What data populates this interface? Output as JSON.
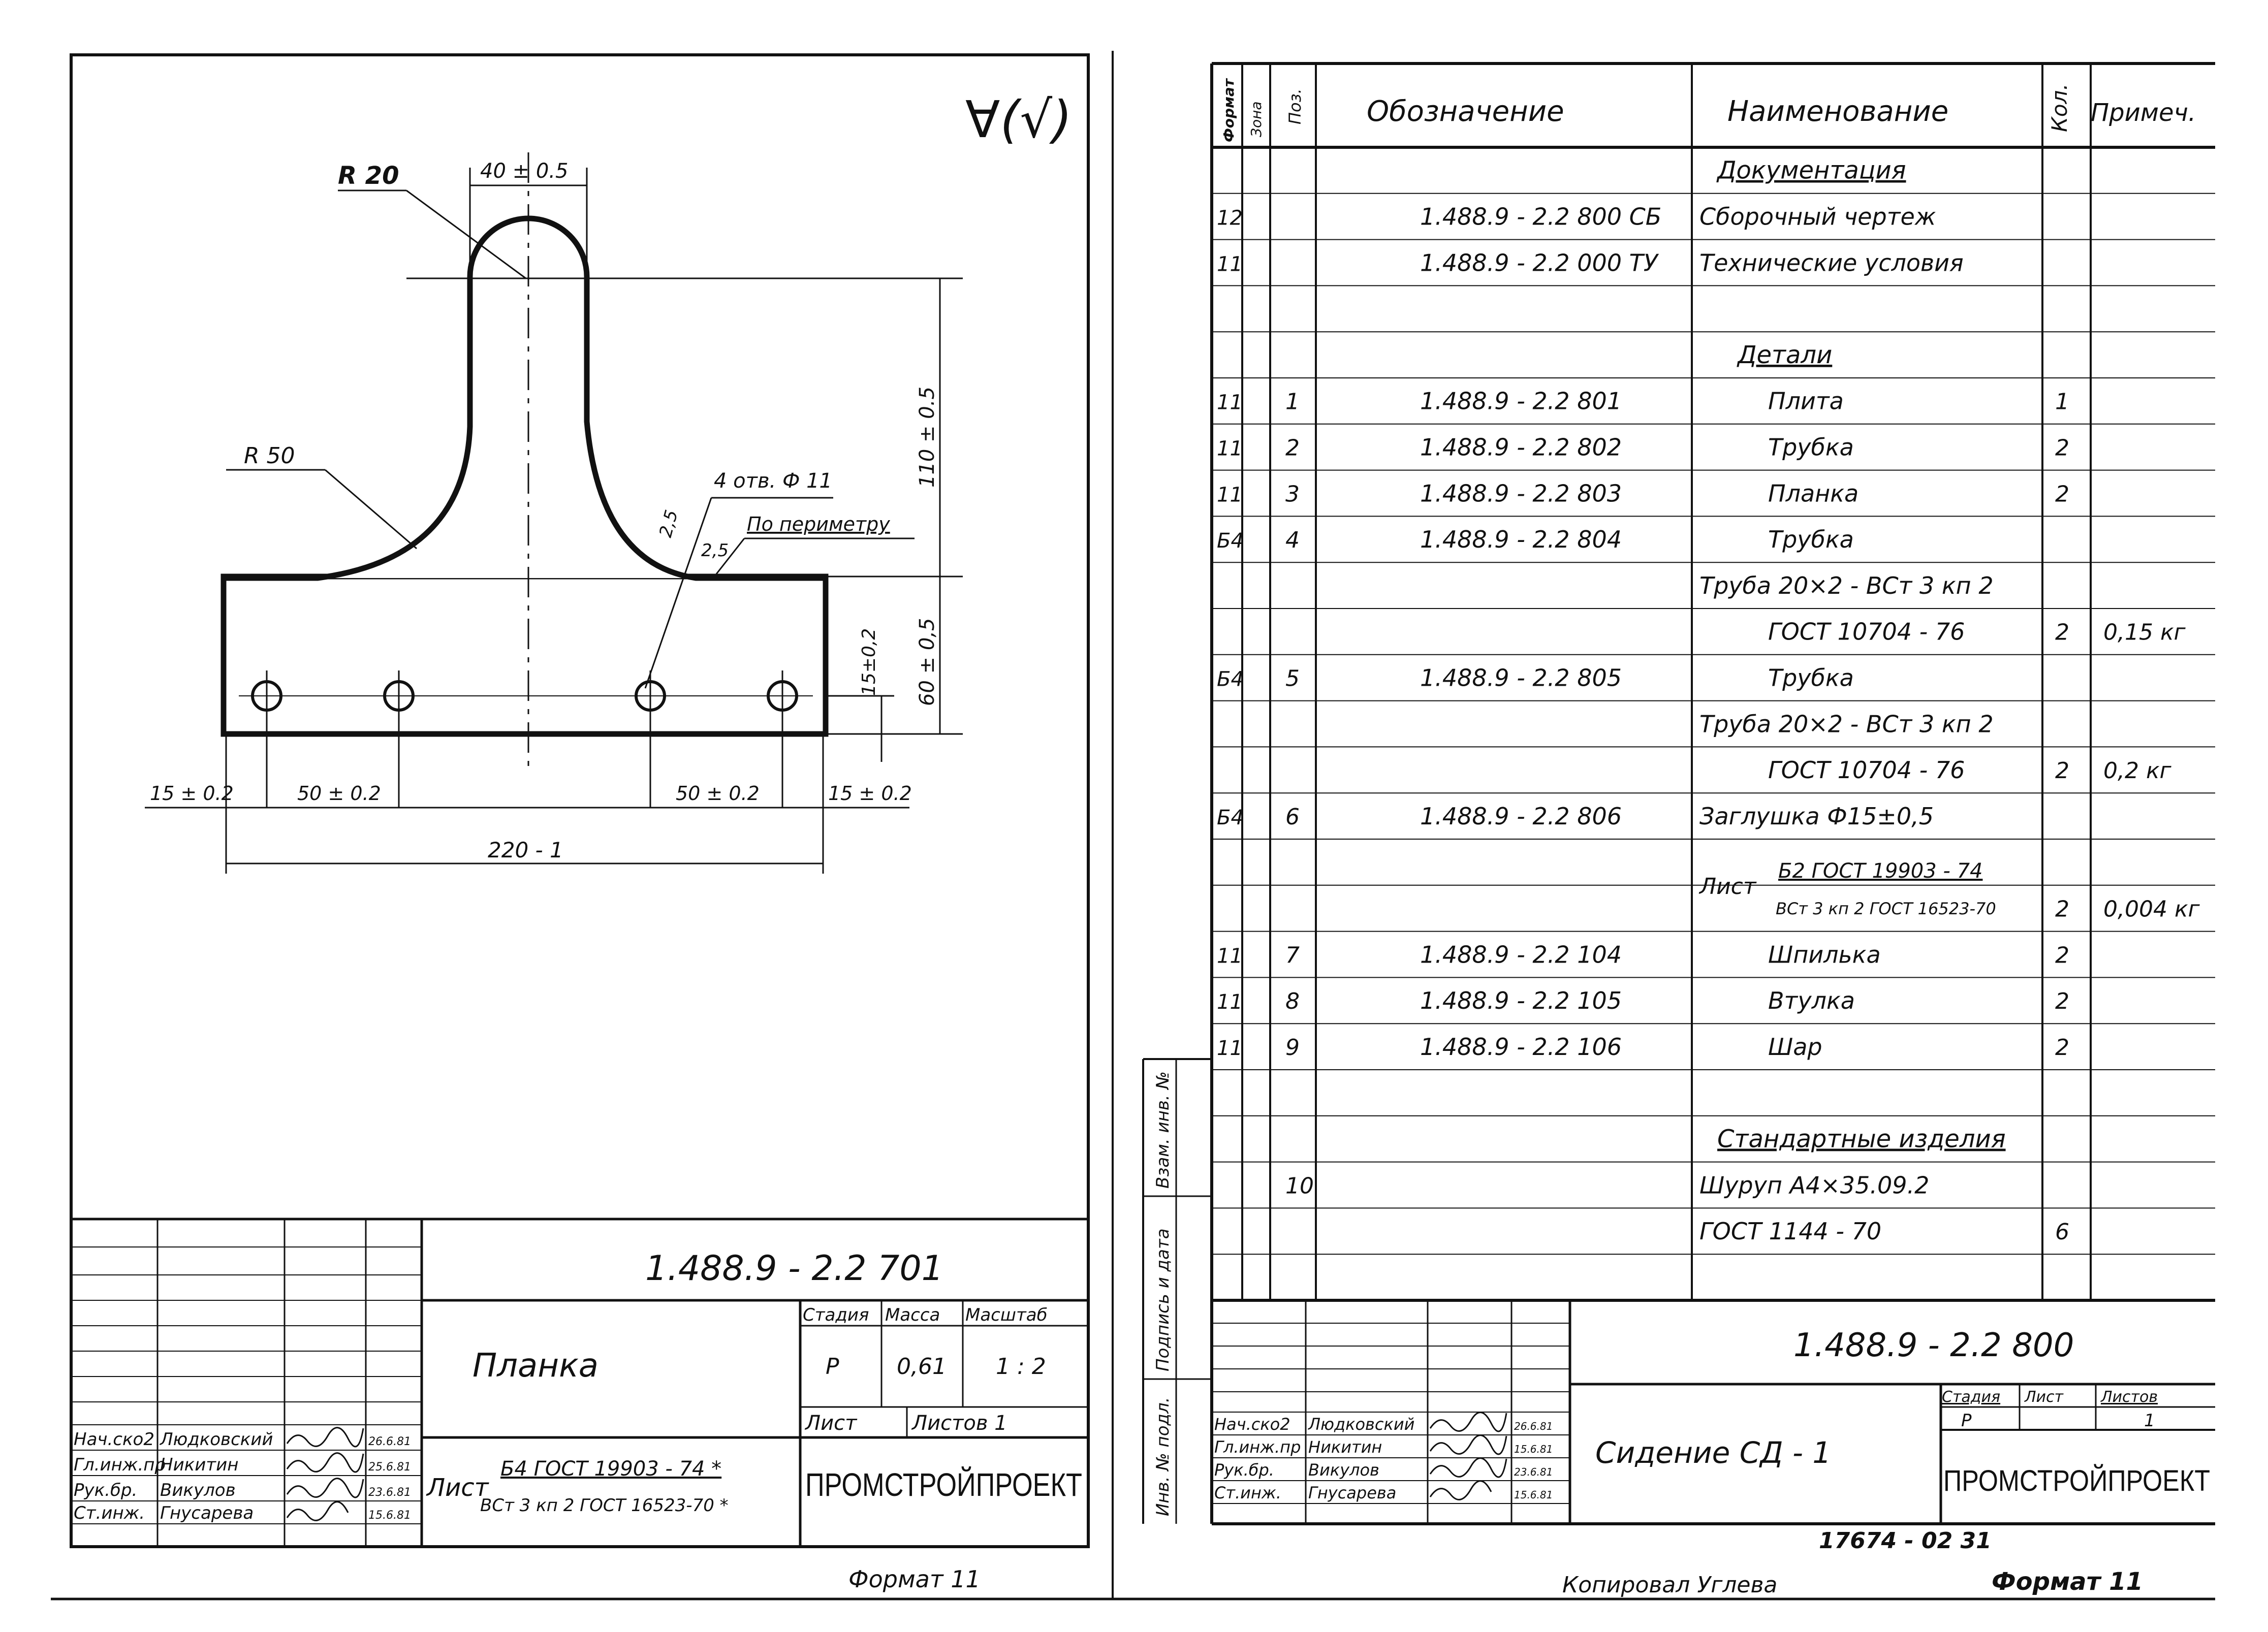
{
  "colors": {
    "ink": "#111111",
    "paper": "#ffffff"
  },
  "left_sheet": {
    "roughness_mark": "∀(√)",
    "dims": {
      "r20": "R 20",
      "top_width": "40 ± 0.5",
      "r50": "R 50",
      "height_110": "110 ± 0.5",
      "holes": "4 отв. Ф 11",
      "weld_a": "2,5",
      "weld_b": "2,5",
      "perimeter": "По периметру",
      "height_60": "60 ± 0,5",
      "hole_offset_15": "15±0,2",
      "left_15": "15 ± 0.2",
      "left_50": "50 ± 0.2",
      "right_50": "50 ± 0.2",
      "right_15": "15 ± 0.2",
      "total_width": "220 - 1"
    },
    "title_block": {
      "designation": "1.488.9 - 2.2 701",
      "part_name": "Планка",
      "material_label": "Лист",
      "material_top": "Б4 ГОСТ 19903 - 74 *",
      "material_bottom": "ВСт 3 кп 2 ГОСТ 16523-70 *",
      "stage_header": "Стадия",
      "mass_header": "Масса",
      "scale_header": "Масштаб",
      "stage": "Р",
      "mass": "0,61",
      "scale": "1 : 2",
      "sheet_label": "Лист",
      "sheets_label": "Листов 1",
      "organization": "ПРОМСТРОЙПРОЕКТ",
      "signatures": [
        {
          "role": "Нач.ско2",
          "name": "Людковский",
          "date": "26.6.81"
        },
        {
          "role": "Гл.инж.пр",
          "name": "Никитин",
          "date": "25.6.81"
        },
        {
          "role": "Рук.бр.",
          "name": "Викулов",
          "date": "23.6.81"
        },
        {
          "role": "Ст.инж.",
          "name": "Гнусарева",
          "date": "15.6.81"
        }
      ]
    },
    "format": "Формат 11"
  },
  "right_sheet": {
    "table_headers": {
      "format": "Формат",
      "zone": "Зона",
      "pos": "Поз.",
      "designation": "Обозначение",
      "name": "Наименование",
      "qty": "Кол.",
      "note": "Примеч."
    },
    "rows": [
      {
        "format": "",
        "pos": "",
        "designation": "",
        "name": "Документация",
        "qty": "",
        "note": "",
        "style": "section"
      },
      {
        "format": "12",
        "pos": "",
        "designation": "1.488.9 - 2.2 800 СБ",
        "name": "Сборочный чертеж",
        "qty": "",
        "note": ""
      },
      {
        "format": "11",
        "pos": "",
        "designation": "1.488.9 - 2.2 000 ТУ",
        "name": "Технические условия",
        "qty": "",
        "note": ""
      },
      {
        "format": "",
        "pos": "",
        "designation": "",
        "name": "",
        "qty": "",
        "note": ""
      },
      {
        "format": "",
        "pos": "",
        "designation": "",
        "name": "Детали",
        "qty": "",
        "note": "",
        "style": "section"
      },
      {
        "format": "11",
        "pos": "1",
        "designation": "1.488.9 - 2.2 801",
        "name": "Плита",
        "qty": "1",
        "note": "",
        "style": "indent"
      },
      {
        "format": "11",
        "pos": "2",
        "designation": "1.488.9 - 2.2 802",
        "name": "Трубка",
        "qty": "2",
        "note": "",
        "style": "indent"
      },
      {
        "format": "11",
        "pos": "3",
        "designation": "1.488.9 - 2.2 803",
        "name": "Планка",
        "qty": "2",
        "note": "",
        "style": "indent"
      },
      {
        "format": "Б4",
        "pos": "4",
        "designation": "1.488.9 - 2.2 804",
        "name": "Трубка",
        "qty": "",
        "note": "",
        "style": "indent"
      },
      {
        "format": "",
        "pos": "",
        "designation": "",
        "name": "Труба 20×2 - ВСт 3 кп 2",
        "qty": "",
        "note": ""
      },
      {
        "format": "",
        "pos": "",
        "designation": "",
        "name": "ГОСТ 10704 - 76",
        "qty": "2",
        "note": "0,15 кг",
        "style": "indent"
      },
      {
        "format": "Б4",
        "pos": "5",
        "designation": "1.488.9 - 2.2 805",
        "name": "Трубка",
        "qty": "",
        "note": "",
        "style": "indent"
      },
      {
        "format": "",
        "pos": "",
        "designation": "",
        "name": "Труба 20×2 - ВСт 3 кп 2",
        "qty": "",
        "note": ""
      },
      {
        "format": "",
        "pos": "",
        "designation": "",
        "name": "ГОСТ 10704 - 76",
        "qty": "2",
        "note": "0,2 кг",
        "style": "indent"
      },
      {
        "format": "Б4",
        "pos": "6",
        "designation": "1.488.9 - 2.2 806",
        "name": "Заглушка Ф15±0,5",
        "qty": "",
        "note": ""
      },
      {
        "format": "",
        "pos": "",
        "designation": "",
        "name": "",
        "qty": "",
        "note": "",
        "style": "fraction_top"
      },
      {
        "format": "",
        "pos": "",
        "designation": "",
        "name": "",
        "qty": "2",
        "note": "0,004 кг",
        "style": "fraction_bottom"
      },
      {
        "format": "11",
        "pos": "7",
        "designation": "1.488.9 - 2.2 104",
        "name": "Шпилька",
        "qty": "2",
        "note": "",
        "style": "indent"
      },
      {
        "format": "11",
        "pos": "8",
        "designation": "1.488.9 - 2.2 105",
        "name": "Втулка",
        "qty": "2",
        "note": "",
        "style": "indent"
      },
      {
        "format": "11",
        "pos": "9",
        "designation": "1.488.9 - 2.2 106",
        "name": "Шар",
        "qty": "2",
        "note": "",
        "style": "indent"
      },
      {
        "format": "",
        "pos": "",
        "designation": "",
        "name": "",
        "qty": "",
        "note": ""
      },
      {
        "format": "",
        "pos": "",
        "designation": "",
        "name": "Стандартные изделия",
        "qty": "",
        "note": "",
        "style": "section"
      },
      {
        "format": "",
        "pos": "10",
        "designation": "",
        "name": "Шуруп А4×35.09.2",
        "qty": "",
        "note": ""
      },
      {
        "format": "",
        "pos": "",
        "designation": "",
        "name": "ГОСТ 1144 - 70",
        "qty": "6",
        "note": ""
      },
      {
        "format": "",
        "pos": "",
        "designation": "",
        "name": "",
        "qty": "",
        "note": ""
      }
    ],
    "plug_material": {
      "label": "Лист",
      "top": "Б2 ГОСТ 19903 - 74",
      "bottom": "ВСт 3 кп 2 ГОСТ 16523-70"
    },
    "side_stamp": {
      "swap_inv": "Взам. инв. №",
      "sign_date": "Подпись и дата",
      "inv_orig": "Инв. № подл."
    },
    "title_block": {
      "designation": "1.488.9 - 2.2 800",
      "part_name": "Сидение СД - 1",
      "stage_header": "Стадия",
      "sheet_header": "Лист",
      "sheets_header": "Листов",
      "stage": "Р",
      "sheets": "1",
      "organization": "ПРОМСТРОЙПРОЕКТ",
      "signatures": [
        {
          "role": "Нач.ско2",
          "name": "Людковский",
          "date": "26.6.81"
        },
        {
          "role": "Гл.инж.пр",
          "name": "Никитин",
          "date": "15.6.81"
        },
        {
          "role": "Рук.бр.",
          "name": "Викулов",
          "date": "23.6.81"
        },
        {
          "role": "Ст.инж.",
          "name": "Гнусарева",
          "date": "15.6.81"
        }
      ]
    },
    "archive_no": "17674 - 02  31",
    "copied_by": "Копировал Углева",
    "format": "Формат 11"
  }
}
